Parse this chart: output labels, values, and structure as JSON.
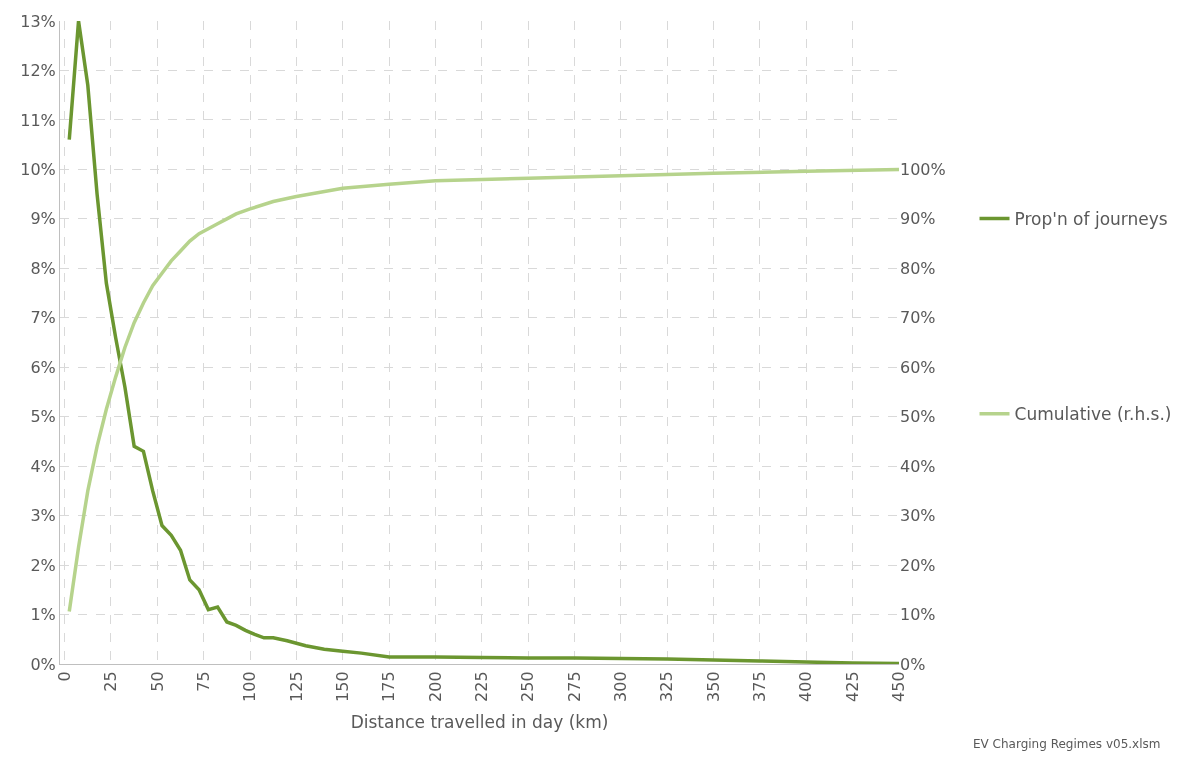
{
  "chart_data": {
    "type": "line",
    "xlabel": "Distance travelled in day (km)",
    "xlim": [
      -2.5,
      450
    ],
    "xticks": [
      0,
      25,
      50,
      75,
      100,
      125,
      150,
      175,
      200,
      225,
      250,
      275,
      300,
      325,
      350,
      375,
      400,
      425,
      450
    ],
    "ylim": [
      0,
      13
    ],
    "yticks": [
      {
        "value": 0,
        "label": "0%"
      },
      {
        "value": 1,
        "label": "1%"
      },
      {
        "value": 2,
        "label": "2%"
      },
      {
        "value": 3,
        "label": "3%"
      },
      {
        "value": 4,
        "label": "4%"
      },
      {
        "value": 5,
        "label": "5%"
      },
      {
        "value": 6,
        "label": "6%"
      },
      {
        "value": 7,
        "label": "7%"
      },
      {
        "value": 8,
        "label": "8%"
      },
      {
        "value": 9,
        "label": "9%"
      },
      {
        "value": 10,
        "label": "10%"
      },
      {
        "value": 11,
        "label": "11%"
      },
      {
        "value": 12,
        "label": "12%"
      },
      {
        "value": 13,
        "label": "13%"
      }
    ],
    "y2lim": [
      0,
      130
    ],
    "y2ticks": [
      {
        "value": 0,
        "label": "0%"
      },
      {
        "value": 10,
        "label": "10%"
      },
      {
        "value": 20,
        "label": "20%"
      },
      {
        "value": 30,
        "label": "30%"
      },
      {
        "value": 40,
        "label": "40%"
      },
      {
        "value": 50,
        "label": "50%"
      },
      {
        "value": 60,
        "label": "60%"
      },
      {
        "value": 70,
        "label": "70%"
      },
      {
        "value": 80,
        "label": "80%"
      },
      {
        "value": 90,
        "label": "90%"
      },
      {
        "value": 100,
        "label": "100%"
      }
    ],
    "grid": true,
    "legend": "right",
    "marker": "none",
    "line_style": "solid",
    "series": [
      {
        "name": "Prop'n of journeys",
        "color": "#6b9630",
        "x": [
          2.5,
          7.5,
          12.5,
          17.5,
          22.5,
          27.5,
          32.5,
          37.5,
          42.5,
          47.5,
          52.5,
          57.5,
          62.5,
          67.5,
          72.5,
          77.5,
          82.5,
          87.5,
          92.5,
          97.5,
          102.5,
          107.5,
          112.5,
          120,
          130,
          140,
          150,
          160,
          175,
          200,
          225,
          250,
          275,
          300,
          325,
          350,
          375,
          400,
          425,
          450
        ],
        "values": [
          10.6,
          13.0,
          11.7,
          9.5,
          7.7,
          6.6,
          5.6,
          4.4,
          4.3,
          3.5,
          2.8,
          2.6,
          2.3,
          1.7,
          1.5,
          1.1,
          1.15,
          0.85,
          0.78,
          0.68,
          0.6,
          0.53,
          0.53,
          0.47,
          0.37,
          0.3,
          0.26,
          0.22,
          0.14,
          0.14,
          0.13,
          0.12,
          0.12,
          0.11,
          0.1,
          0.08,
          0.06,
          0.04,
          0.02,
          0.01
        ]
      },
      {
        "name": "Cumulative (r.h.s.)",
        "color": "#b6d38c",
        "axis": "y2",
        "x": [
          2.5,
          7.5,
          12.5,
          17.5,
          22.5,
          27.5,
          32.5,
          37.5,
          42.5,
          47.5,
          52.5,
          57.5,
          62.5,
          67.5,
          72.5,
          77.5,
          82.5,
          87.5,
          92.5,
          100,
          112.5,
          125,
          150,
          175,
          200,
          250,
          300,
          350,
          400,
          450
        ],
        "values": [
          10.6,
          23.6,
          35,
          44,
          51.5,
          58,
          64,
          69,
          73,
          76.5,
          79,
          81.5,
          83.5,
          85.5,
          87,
          88,
          89,
          90,
          91,
          92,
          93.5,
          94.5,
          96.2,
          97,
          97.7,
          98.2,
          98.7,
          99.2,
          99.6,
          100
        ]
      }
    ],
    "annotations": [
      "EV Charging Regimes v05.xlsm"
    ]
  }
}
